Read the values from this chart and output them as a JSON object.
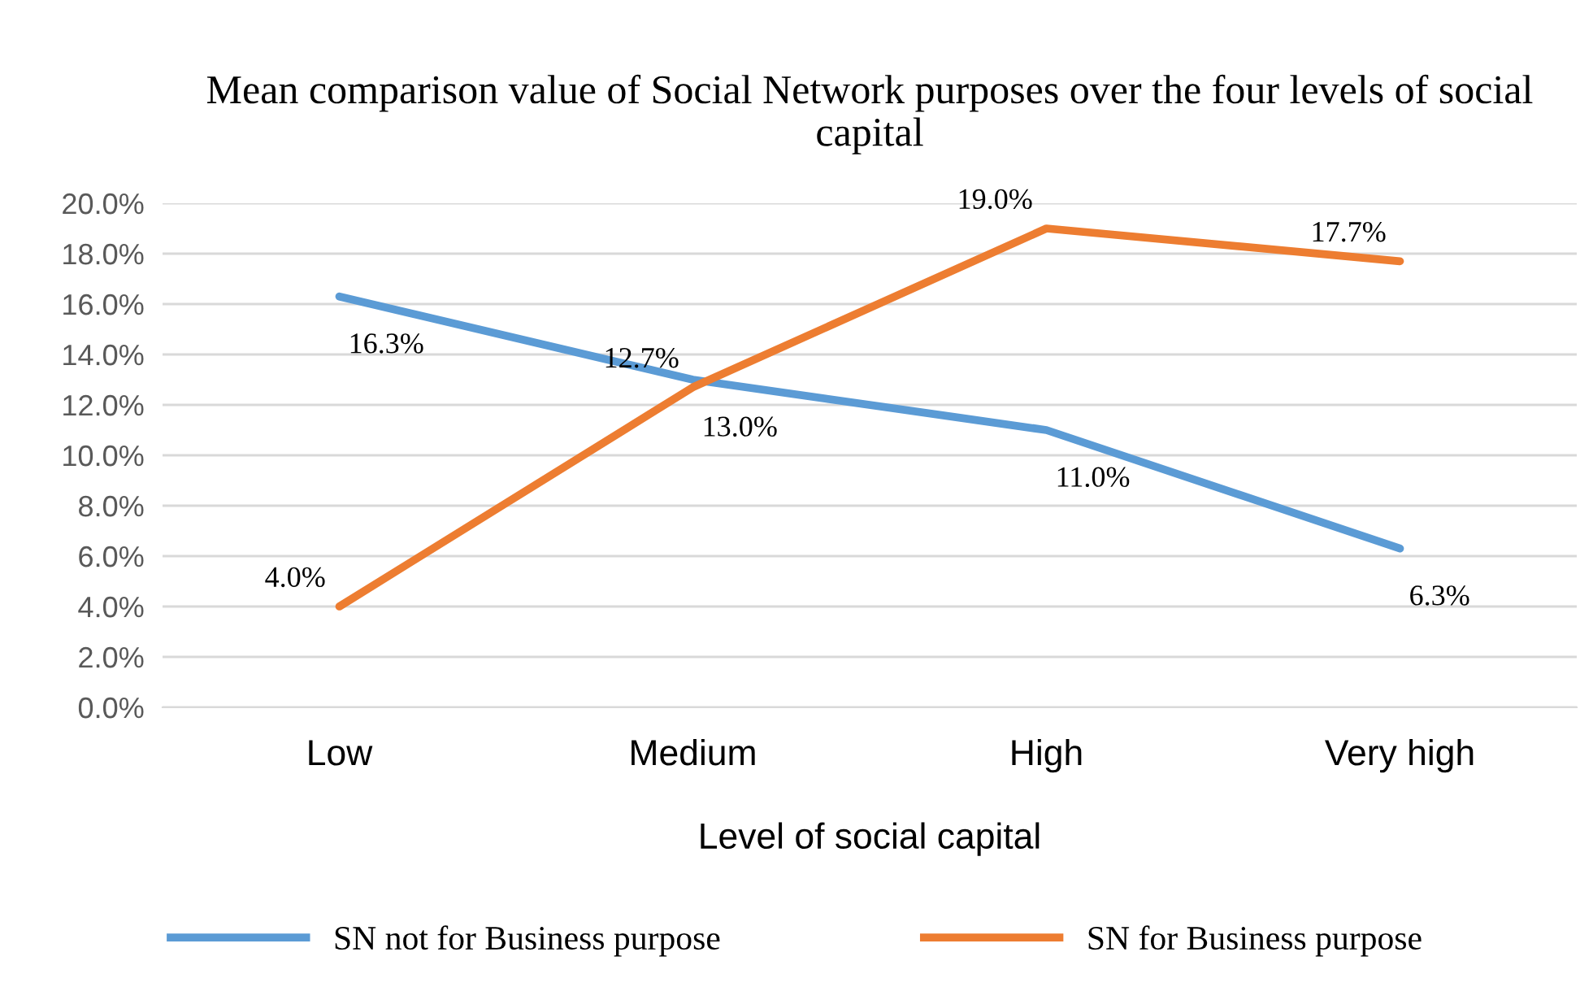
{
  "chart_data": {
    "type": "line",
    "title": "Mean comparison value of Social Network purposes over the four levels of social capital",
    "xlabel": "Level of social capital",
    "categories": [
      "Low",
      "Medium",
      "High",
      "Very high"
    ],
    "series": [
      {
        "name": "SN not for Business purpose",
        "color": "#5b9bd5",
        "values": [
          16.3,
          13.0,
          11.0,
          6.3
        ],
        "value_labels": [
          "16.3%",
          "13.0%",
          "11.0%",
          "6.3%"
        ]
      },
      {
        "name": "SN for Business purpose",
        "color": "#ed7d31",
        "values": [
          4.0,
          12.7,
          19.0,
          17.7
        ],
        "value_labels": [
          "4.0%",
          "12.7%",
          "19.0%",
          "17.7%"
        ]
      }
    ],
    "ylim": [
      0,
      20
    ],
    "yticks": [
      {
        "value": 0,
        "label": "0.0%"
      },
      {
        "value": 2,
        "label": "2.0%"
      },
      {
        "value": 4,
        "label": "4.0%"
      },
      {
        "value": 6,
        "label": "6.0%"
      },
      {
        "value": 8,
        "label": "8.0%"
      },
      {
        "value": 10,
        "label": "10.0%"
      },
      {
        "value": 12,
        "label": "12.0%"
      },
      {
        "value": 14,
        "label": "14.0%"
      },
      {
        "value": 16,
        "label": "16.0%"
      },
      {
        "value": 18,
        "label": "18.0%"
      },
      {
        "value": 20,
        "label": "20.0%"
      }
    ],
    "grid": "y",
    "legend": "bottom",
    "marker": "none",
    "line_style": "solid"
  }
}
